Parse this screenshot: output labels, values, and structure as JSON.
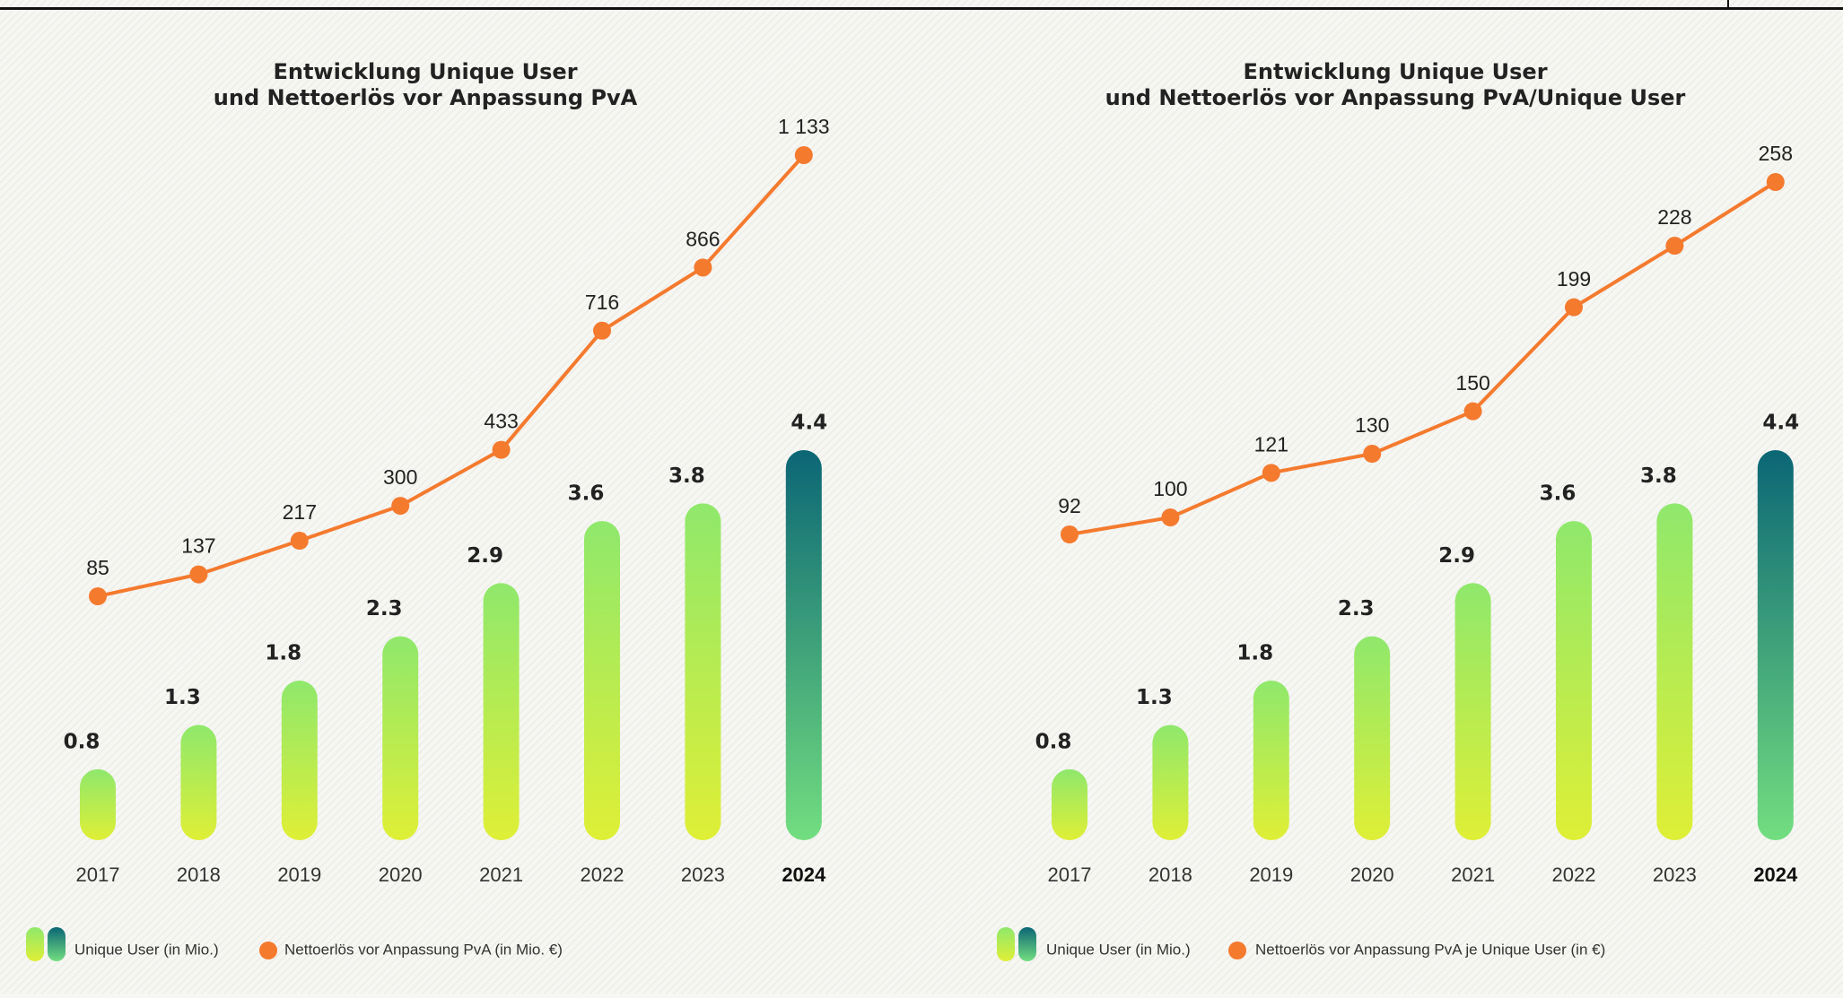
{
  "chart_data": [
    {
      "type": "bar_line",
      "title": [
        "Entwicklung Unique User",
        "und Nettoerlös vor Anpassung PvA"
      ],
      "categories": [
        "2017",
        "2018",
        "2019",
        "2020",
        "2021",
        "2022",
        "2023",
        "2024"
      ],
      "highlight_index": 7,
      "series": [
        {
          "name": "Unique User (in Mio.)",
          "type": "bar",
          "color": "#a6ea5c",
          "highlight_color": "#0b6675",
          "values": [
            0.8,
            1.3,
            1.8,
            2.3,
            2.9,
            3.6,
            3.8,
            4.4
          ]
        },
        {
          "name": "Nettoerlös vor Anpassung PvA (in Mio. €)",
          "type": "line",
          "color": "#f47a2e",
          "values": [
            85,
            137,
            217,
            300,
            433,
            716,
            866,
            1133
          ],
          "value_labels": [
            "85",
            "137",
            "217",
            "300",
            "433",
            "716",
            "866",
            "1 133"
          ]
        }
      ]
    },
    {
      "type": "bar_line",
      "title": [
        "Entwicklung Unique User",
        "und Nettoerlös vor Anpassung PvA/Unique User"
      ],
      "categories": [
        "2017",
        "2018",
        "2019",
        "2020",
        "2021",
        "2022",
        "2023",
        "2024"
      ],
      "highlight_index": 7,
      "series": [
        {
          "name": "Unique User (in Mio.)",
          "type": "bar",
          "color": "#a6ea5c",
          "highlight_color": "#0b6675",
          "values": [
            0.8,
            1.3,
            1.8,
            2.3,
            2.9,
            3.6,
            3.8,
            4.4
          ]
        },
        {
          "name": "Nettoerlös vor Anpassung PvA je Unique User (in €)",
          "type": "line",
          "color": "#f47a2e",
          "values": [
            92,
            100,
            121,
            130,
            150,
            199,
            228,
            258
          ]
        }
      ]
    }
  ]
}
